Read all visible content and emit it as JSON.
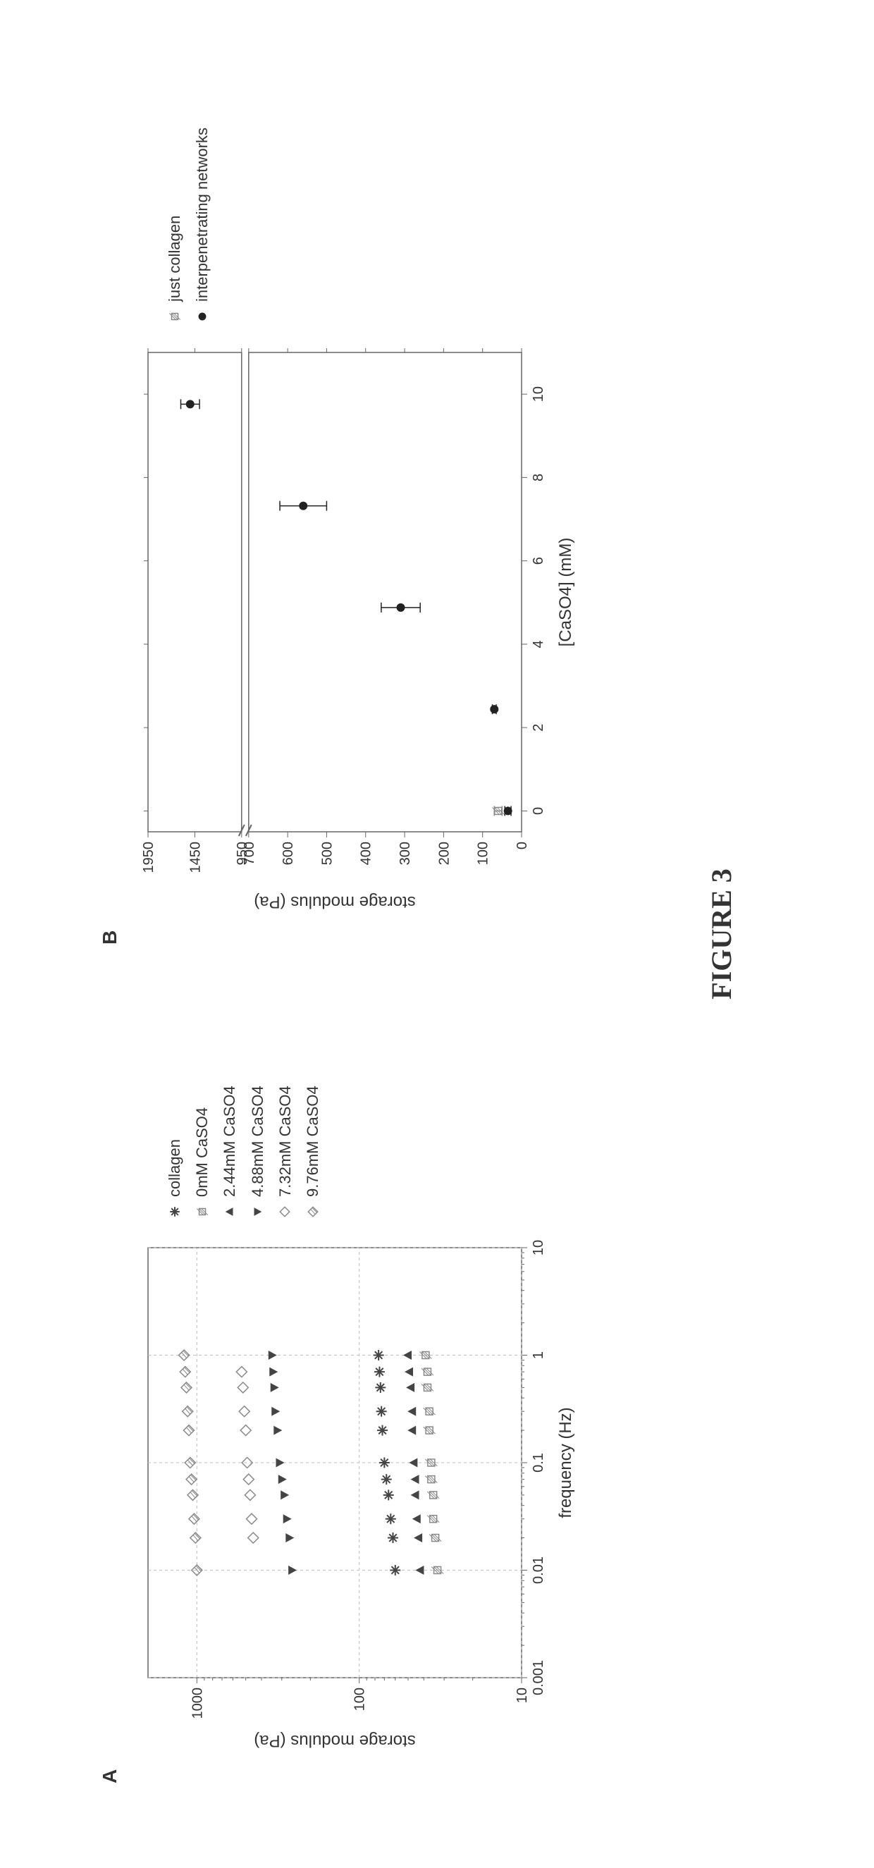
{
  "caption": "FIGURE 3",
  "panelA": {
    "label": "A",
    "type": "scatter",
    "x_scale": "log",
    "y_scale": "log",
    "xlim": [
      0.001,
      10
    ],
    "ylim": [
      10,
      2000
    ],
    "x_ticks": [
      0.001,
      0.01,
      0.1,
      1,
      10
    ],
    "x_tick_labels": [
      "0.001",
      "0.01",
      "0.1",
      "1",
      "10"
    ],
    "y_ticks": [
      10,
      100,
      1000
    ],
    "y_tick_labels": [
      "10",
      "100",
      "1000"
    ],
    "x_label": "frequency (Hz)",
    "y_label": "storage modulus (Pa)",
    "grid_color": "#bdbdbd",
    "border_color": "#666666",
    "background_color": "#ffffff",
    "marker_size": 10,
    "series": [
      {
        "name": "collagen",
        "marker": "asterisk",
        "color": "#444444",
        "points": [
          [
            0.01,
            60
          ],
          [
            0.02,
            62
          ],
          [
            0.03,
            64
          ],
          [
            0.05,
            66
          ],
          [
            0.07,
            68
          ],
          [
            0.1,
            70
          ],
          [
            0.2,
            72
          ],
          [
            0.3,
            73
          ],
          [
            0.5,
            74
          ],
          [
            0.7,
            75
          ],
          [
            1,
            76
          ]
        ]
      },
      {
        "name": "0mM CaSO4",
        "marker": "square-hatched",
        "color": "#888888",
        "points": [
          [
            0.01,
            33
          ],
          [
            0.02,
            34
          ],
          [
            0.03,
            35
          ],
          [
            0.05,
            35
          ],
          [
            0.07,
            36
          ],
          [
            0.1,
            36
          ],
          [
            0.2,
            37
          ],
          [
            0.3,
            37
          ],
          [
            0.5,
            38
          ],
          [
            0.7,
            38
          ],
          [
            1,
            39
          ]
        ]
      },
      {
        "name": "2.44mM CaSO4",
        "marker": "triangle-up",
        "color": "#444444",
        "points": [
          [
            0.01,
            42
          ],
          [
            0.02,
            43
          ],
          [
            0.03,
            44
          ],
          [
            0.05,
            45
          ],
          [
            0.07,
            45
          ],
          [
            0.1,
            46
          ],
          [
            0.2,
            47
          ],
          [
            0.3,
            47
          ],
          [
            0.5,
            48
          ],
          [
            0.7,
            49
          ],
          [
            1,
            50
          ]
        ]
      },
      {
        "name": "4.88mM CaSO4",
        "marker": "triangle-down",
        "color": "#444444",
        "points": [
          [
            0.01,
            260
          ],
          [
            0.02,
            270
          ],
          [
            0.03,
            280
          ],
          [
            0.05,
            290
          ],
          [
            0.07,
            300
          ],
          [
            0.1,
            310
          ],
          [
            0.2,
            320
          ],
          [
            0.3,
            330
          ],
          [
            0.5,
            335
          ],
          [
            0.7,
            340
          ],
          [
            1,
            345
          ]
        ]
      },
      {
        "name": "7.32mM CaSO4",
        "marker": "diamond-open",
        "color": "#888888",
        "points": [
          [
            0.02,
            450
          ],
          [
            0.03,
            460
          ],
          [
            0.05,
            470
          ],
          [
            0.07,
            480
          ],
          [
            0.1,
            490
          ],
          [
            0.2,
            500
          ],
          [
            0.3,
            510
          ],
          [
            0.5,
            520
          ],
          [
            0.7,
            530
          ]
        ]
      },
      {
        "name": "9.76mM CaSO4",
        "marker": "diamond-hatched",
        "color": "#888888",
        "points": [
          [
            0.01,
            1000
          ],
          [
            0.02,
            1020
          ],
          [
            0.03,
            1040
          ],
          [
            0.05,
            1060
          ],
          [
            0.07,
            1080
          ],
          [
            0.1,
            1100
          ],
          [
            0.2,
            1120
          ],
          [
            0.3,
            1140
          ],
          [
            0.5,
            1160
          ],
          [
            0.7,
            1180
          ],
          [
            1,
            1200
          ]
        ]
      }
    ],
    "legend_label_fontsize": 22
  },
  "panelB": {
    "label": "B",
    "type": "scatter-errorbar",
    "x_scale": "linear",
    "y_scale": "broken-linear",
    "xlim": [
      -0.5,
      11
    ],
    "x_ticks": [
      0,
      2,
      4,
      6,
      8,
      10
    ],
    "x_tick_labels": [
      "0",
      "2",
      "4",
      "6",
      "8",
      "10"
    ],
    "y_ticks": [
      0,
      100,
      200,
      300,
      400,
      500,
      600,
      700,
      950,
      1450,
      1950
    ],
    "y_tick_labels": [
      "0",
      "100",
      "200",
      "300",
      "400",
      "500",
      "600",
      "700",
      "950",
      "1450",
      "1950"
    ],
    "x_label": "[CaSO4] (mM)",
    "y_label": "storage modulus (Pa)",
    "grid_color": "#d8d8d8",
    "border_color": "#666666",
    "background_color": "#ffffff",
    "marker_size": 10,
    "series": [
      {
        "name": "just collagen",
        "legend_label": "just collagen",
        "marker": "square-hatched",
        "color": "#888888",
        "points": [
          {
            "x": 0,
            "y": 60,
            "err": 10
          }
        ]
      },
      {
        "name": "interpenetrating networks",
        "legend_label": "interpenetrating networks",
        "marker": "circle-filled",
        "color": "#222222",
        "points": [
          {
            "x": 0,
            "y": 35,
            "err": 8
          },
          {
            "x": 2.44,
            "y": 70,
            "err": 5
          },
          {
            "x": 4.88,
            "y": 310,
            "err": 50
          },
          {
            "x": 7.32,
            "y": 560,
            "err": 60
          },
          {
            "x": 9.76,
            "y": 1500,
            "err": 100
          }
        ]
      }
    ],
    "legend_label_fontsize": 22
  },
  "colors": {
    "text": "#333333",
    "panel_border": "#666666",
    "grid": "#bdbdbd"
  }
}
